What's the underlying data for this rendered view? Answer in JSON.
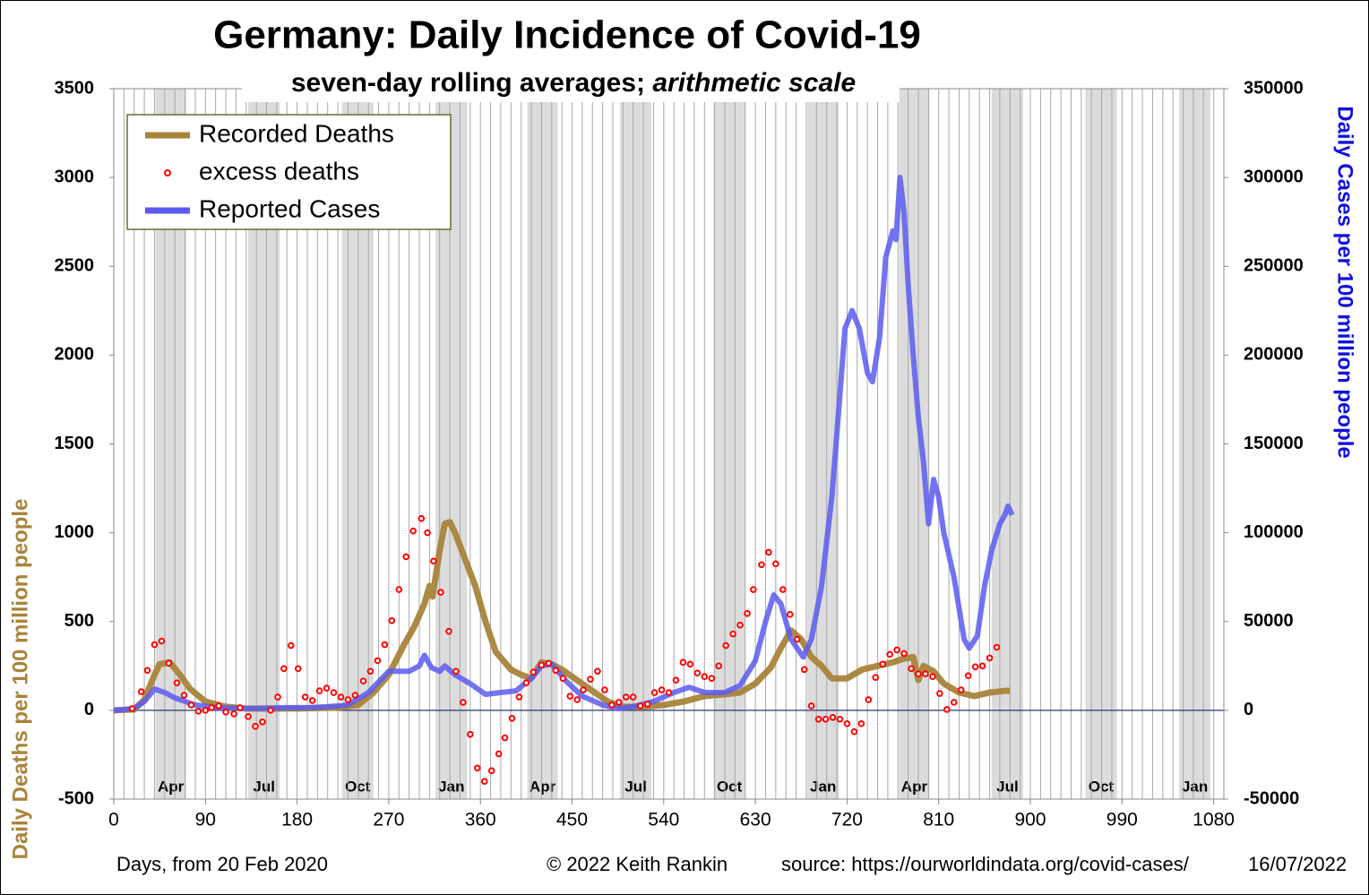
{
  "chart_data": {
    "type": "line",
    "title": "Germany: Daily Incidence of Covid-19",
    "subtitle": "seven-day rolling averages; ",
    "subtitle_italic": "arithmetic scale",
    "xlabel": "Days, from 20 Feb 2020",
    "ylabel": "Daily Deaths per 100 million people",
    "y2label": "Daily Cases per 100 million people",
    "credit": "© 2022  Keith Rankin",
    "source": "source: https://ourworldindata.org/covid-cases/",
    "date": "16/07/2022",
    "legend": "upper left",
    "xlim": [
      0,
      1090
    ],
    "xticks": [
      0,
      90,
      180,
      270,
      360,
      450,
      540,
      630,
      720,
      810,
      900,
      990,
      1080
    ],
    "x_minor_ticks": [
      0,
      10,
      20,
      30,
      40,
      50,
      60,
      70,
      80,
      90,
      100,
      110,
      120,
      130,
      140,
      150,
      160,
      170,
      180,
      190,
      200,
      210,
      220,
      230,
      240,
      250,
      260,
      270,
      280,
      290,
      300,
      310,
      320,
      330,
      340,
      350,
      360,
      370,
      380,
      390,
      400,
      410,
      420,
      430,
      440,
      450,
      460,
      470,
      480,
      490,
      500,
      510,
      520,
      530,
      540,
      550,
      560,
      570,
      580,
      590,
      600,
      610,
      620,
      630,
      640,
      650,
      660,
      670,
      680,
      690,
      700,
      710,
      720,
      730,
      740,
      750,
      760,
      770,
      780,
      790,
      800,
      810,
      820,
      830,
      840,
      850,
      860,
      870,
      880,
      890,
      900,
      910,
      920,
      930,
      940,
      950,
      960,
      970,
      980,
      990,
      1000,
      1010,
      1020,
      1030,
      1040,
      1050,
      1060,
      1070,
      1080,
      1090
    ],
    "ylim": [
      -500,
      3500
    ],
    "yticks": [
      -500,
      0,
      500,
      1000,
      1500,
      2000,
      2500,
      3000,
      3500
    ],
    "y2lim": [
      -50000,
      350000
    ],
    "y2ticks": [
      -50000,
      0,
      50000,
      100000,
      150000,
      200000,
      250000,
      300000,
      350000
    ],
    "shaded_months": [
      {
        "label": "Apr",
        "start": 41,
        "end": 71
      },
      {
        "label": "Jul",
        "start": 132,
        "end": 163
      },
      {
        "label": "Oct",
        "start": 224,
        "end": 255
      },
      {
        "label": "Jan",
        "start": 316,
        "end": 347
      },
      {
        "label": "Apr",
        "start": 406,
        "end": 436
      },
      {
        "label": "Jul",
        "start": 497,
        "end": 528
      },
      {
        "label": "Oct",
        "start": 589,
        "end": 620
      },
      {
        "label": "Jan",
        "start": 681,
        "end": 712
      },
      {
        "label": "Apr",
        "start": 771,
        "end": 801
      },
      {
        "label": "Jul",
        "start": 862,
        "end": 893
      },
      {
        "label": "Oct",
        "start": 954,
        "end": 985
      },
      {
        "label": "Jan",
        "start": 1046,
        "end": 1077
      }
    ],
    "series": [
      {
        "name": "Recorded Deaths",
        "type": "line",
        "color": "#a8843a",
        "x": [
          0,
          20,
          30,
          40,
          45,
          55,
          65,
          75,
          90,
          110,
          130,
          150,
          180,
          220,
          240,
          255,
          270,
          285,
          295,
          305,
          310,
          313,
          320,
          325,
          330,
          335,
          345,
          355,
          365,
          375,
          390,
          400,
          410,
          420,
          430,
          440,
          455,
          470,
          485,
          500,
          520,
          540,
          560,
          580,
          600,
          615,
          630,
          645,
          655,
          665,
          675,
          685,
          695,
          705,
          720,
          735,
          750,
          765,
          775,
          785,
          790,
          795,
          805,
          815,
          830,
          845,
          860,
          875,
          880
        ],
        "values": [
          0,
          5,
          60,
          200,
          260,
          270,
          200,
          120,
          50,
          20,
          10,
          10,
          10,
          15,
          30,
          100,
          200,
          370,
          470,
          600,
          700,
          640,
          900,
          1050,
          1060,
          1000,
          850,
          700,
          500,
          330,
          230,
          200,
          180,
          270,
          260,
          230,
          170,
          110,
          50,
          20,
          20,
          30,
          50,
          80,
          90,
          100,
          150,
          240,
          350,
          450,
          400,
          300,
          250,
          180,
          180,
          230,
          250,
          270,
          290,
          300,
          170,
          250,
          220,
          150,
          100,
          80,
          100,
          110,
          110
        ]
      },
      {
        "name": "excess deaths",
        "type": "scatter",
        "color": "#ff0000",
        "x": [
          18,
          27,
          33,
          40,
          47,
          54,
          62,
          69,
          76,
          83,
          90,
          96,
          103,
          110,
          118,
          124,
          132,
          139,
          146,
          154,
          161,
          167,
          174,
          181,
          188,
          195,
          202,
          209,
          216,
          223,
          230,
          237,
          245,
          252,
          259,
          266,
          273,
          280,
          287,
          294,
          302,
          308,
          314,
          321,
          329,
          336,
          343,
          350,
          357,
          364,
          371,
          378,
          384,
          391,
          398,
          405,
          412,
          420,
          427,
          434,
          441,
          448,
          455,
          461,
          468,
          475,
          482,
          489,
          496,
          503,
          510,
          517,
          524,
          531,
          538,
          545,
          552,
          559,
          566,
          573,
          580,
          587,
          594,
          601,
          608,
          615,
          622,
          628,
          636,
          643,
          650,
          657,
          664,
          671,
          678,
          685,
          692,
          699,
          706,
          713,
          720,
          727,
          734,
          741,
          748,
          755,
          762,
          769,
          776,
          783,
          790,
          797,
          804,
          811,
          818,
          825,
          832,
          839,
          846,
          853,
          860,
          867
        ],
        "values": [
          10,
          105,
          225,
          370,
          390,
          265,
          155,
          85,
          30,
          -5,
          0,
          15,
          25,
          -10,
          -20,
          15,
          -35,
          -90,
          -65,
          0,
          75,
          235,
          365,
          235,
          75,
          55,
          110,
          125,
          100,
          75,
          60,
          85,
          165,
          220,
          280,
          370,
          505,
          680,
          865,
          1010,
          1080,
          1000,
          840,
          665,
          445,
          220,
          45,
          -135,
          -325,
          -400,
          -340,
          -245,
          -155,
          -45,
          75,
          155,
          215,
          255,
          265,
          225,
          180,
          80,
          60,
          115,
          175,
          220,
          115,
          30,
          45,
          75,
          75,
          25,
          35,
          100,
          115,
          100,
          170,
          270,
          260,
          210,
          190,
          180,
          250,
          365,
          430,
          480,
          545,
          680,
          820,
          890,
          825,
          680,
          540,
          400,
          230,
          25,
          -50,
          -50,
          -40,
          -50,
          -75,
          -120,
          -75,
          60,
          185,
          260,
          315,
          340,
          320,
          235,
          205,
          205,
          190,
          95,
          5,
          45,
          115,
          195,
          245,
          250,
          295,
          355
        ]
      },
      {
        "name": "Reported Cases",
        "type": "line",
        "axis": "y2",
        "color": "#5a5af2",
        "x": [
          0,
          20,
          30,
          40,
          50,
          60,
          80,
          100,
          130,
          150,
          170,
          190,
          210,
          230,
          250,
          260,
          270,
          290,
          300,
          305,
          312,
          320,
          325,
          335,
          350,
          365,
          380,
          395,
          410,
          420,
          430,
          445,
          460,
          480,
          495,
          510,
          530,
          550,
          565,
          580,
          600,
          615,
          630,
          640,
          648,
          655,
          665,
          677,
          685,
          695,
          705,
          712,
          718,
          725,
          732,
          740,
          745,
          752,
          758,
          765,
          768,
          772,
          776,
          780,
          785,
          790,
          795,
          800,
          805,
          810,
          815,
          825,
          835,
          840,
          848,
          855,
          862,
          870,
          875,
          878,
          882
        ],
        "values": [
          0,
          1000,
          5000,
          12000,
          10000,
          7000,
          3000,
          1500,
          1000,
          1200,
          1500,
          1500,
          2000,
          3000,
          10000,
          16000,
          22000,
          22000,
          25000,
          31000,
          24000,
          22000,
          25000,
          20000,
          15000,
          9000,
          10000,
          11000,
          18000,
          25000,
          26000,
          16000,
          8000,
          3000,
          1000,
          2000,
          5000,
          10000,
          13000,
          10000,
          10000,
          14000,
          28000,
          50000,
          65000,
          60000,
          40000,
          30000,
          40000,
          70000,
          120000,
          170000,
          215000,
          225000,
          215000,
          190000,
          185000,
          210000,
          255000,
          270000,
          265000,
          300000,
          280000,
          240000,
          200000,
          165000,
          140000,
          105000,
          130000,
          120000,
          100000,
          75000,
          40000,
          35000,
          42000,
          70000,
          90000,
          105000,
          110000,
          115000,
          110000
        ]
      }
    ]
  }
}
